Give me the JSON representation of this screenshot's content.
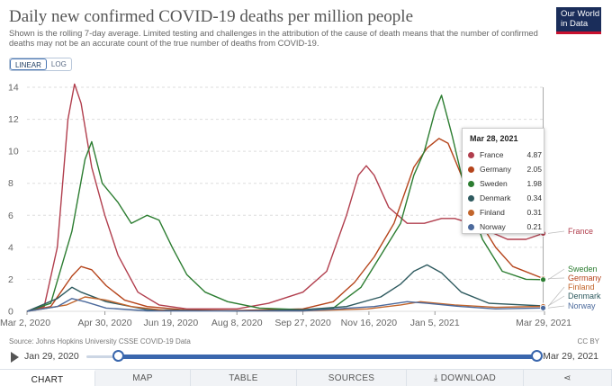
{
  "header": {
    "title": "Daily new confirmed COVID-19 deaths per million people",
    "subtitle": "Shown is the rolling 7-day average. Limited testing and challenges in the attribution of the cause of death means that the number of confirmed deaths may not be an accurate count of the true number of deaths from COVID-19.",
    "logo_line1": "Our World",
    "logo_line2": "in Data"
  },
  "scale_toggle": {
    "linear": "LINEAR",
    "log": "LOG",
    "active": "LINEAR"
  },
  "source": "Source: Johns Hopkins University CSSE COVID-19 Data",
  "license": "CC BY",
  "timeline": {
    "start_label": "Jan 29, 2020",
    "end_label": "Mar 29, 2021",
    "range_start": 0.07,
    "range_end": 1.0
  },
  "tabs": [
    {
      "label": "CHART",
      "active": true
    },
    {
      "label": "MAP",
      "active": false
    },
    {
      "label": "TABLE",
      "active": false
    },
    {
      "label": "SOURCES",
      "active": false
    },
    {
      "label": "⤓ DOWNLOAD",
      "active": false
    },
    {
      "label": "share-icon",
      "active": false
    }
  ],
  "tooltip": {
    "date": "Mar 28, 2021",
    "rows": [
      {
        "country": "France",
        "value": "4.87",
        "color": "#b13e4d"
      },
      {
        "country": "Germany",
        "value": "2.05",
        "color": "#b5441b"
      },
      {
        "country": "Sweden",
        "value": "1.98",
        "color": "#2c7d31"
      },
      {
        "country": "Denmark",
        "value": "0.34",
        "color": "#2e5a5f"
      },
      {
        "country": "Finland",
        "value": "0.31",
        "color": "#c2652c"
      },
      {
        "country": "Norway",
        "value": "0.21",
        "color": "#4c6a9c"
      }
    ]
  },
  "chart_data": {
    "type": "line",
    "title": "Daily new confirmed COVID-19 deaths per million people",
    "ylim": [
      0,
      14
    ],
    "yticks": [
      0,
      2,
      4,
      6,
      8,
      10,
      12,
      14
    ],
    "xlim": [
      "2020-03-02",
      "2021-03-29"
    ],
    "xticks": [
      "Mar 2, 2020",
      "Apr 30, 2020",
      "Jun 19, 2020",
      "Aug 8, 2020",
      "Sep 27, 2020",
      "Nov 16, 2020",
      "Jan 5, 2021",
      "Mar 29, 2021"
    ],
    "xtick_dates": [
      "2020-03-02",
      "2020-04-30",
      "2020-06-19",
      "2020-08-08",
      "2020-09-27",
      "2020-11-16",
      "2021-01-05",
      "2021-03-29"
    ],
    "grid": true,
    "series": [
      {
        "name": "France",
        "color": "#b13e4d",
        "points": [
          [
            "2020-03-02",
            0
          ],
          [
            "2020-03-15",
            0.3
          ],
          [
            "2020-03-25",
            4
          ],
          [
            "2020-04-02",
            12
          ],
          [
            "2020-04-07",
            14.2
          ],
          [
            "2020-04-12",
            13
          ],
          [
            "2020-04-20",
            9
          ],
          [
            "2020-04-30",
            6
          ],
          [
            "2020-05-10",
            3.5
          ],
          [
            "2020-05-25",
            1.2
          ],
          [
            "2020-06-10",
            0.4
          ],
          [
            "2020-07-01",
            0.15
          ],
          [
            "2020-08-08",
            0.15
          ],
          [
            "2020-09-01",
            0.5
          ],
          [
            "2020-09-27",
            1.2
          ],
          [
            "2020-10-15",
            2.5
          ],
          [
            "2020-10-30",
            6
          ],
          [
            "2020-11-08",
            8.5
          ],
          [
            "2020-11-14",
            9.1
          ],
          [
            "2020-11-20",
            8.5
          ],
          [
            "2020-12-01",
            6.5
          ],
          [
            "2020-12-15",
            5.5
          ],
          [
            "2020-12-28",
            5.5
          ],
          [
            "2021-01-10",
            5.8
          ],
          [
            "2021-01-20",
            5.8
          ],
          [
            "2021-02-01",
            5.5
          ],
          [
            "2021-02-15",
            5.0
          ],
          [
            "2021-03-01",
            4.5
          ],
          [
            "2021-03-15",
            4.5
          ],
          [
            "2021-03-28",
            4.87
          ]
        ]
      },
      {
        "name": "Germany",
        "color": "#b5441b",
        "points": [
          [
            "2020-03-02",
            0
          ],
          [
            "2020-03-20",
            0.3
          ],
          [
            "2020-04-05",
            2.2
          ],
          [
            "2020-04-12",
            2.8
          ],
          [
            "2020-04-20",
            2.6
          ],
          [
            "2020-05-01",
            1.6
          ],
          [
            "2020-05-15",
            0.7
          ],
          [
            "2020-06-01",
            0.3
          ],
          [
            "2020-07-01",
            0.08
          ],
          [
            "2020-08-08",
            0.05
          ],
          [
            "2020-09-27",
            0.15
          ],
          [
            "2020-10-20",
            0.6
          ],
          [
            "2020-11-05",
            1.8
          ],
          [
            "2020-11-20",
            3.4
          ],
          [
            "2020-12-05",
            5.5
          ],
          [
            "2020-12-20",
            9
          ],
          [
            "2020-12-30",
            10.2
          ],
          [
            "2021-01-08",
            10.8
          ],
          [
            "2021-01-15",
            10.5
          ],
          [
            "2021-01-25",
            8.5
          ],
          [
            "2021-02-05",
            6
          ],
          [
            "2021-02-20",
            4
          ],
          [
            "2021-03-05",
            2.8
          ],
          [
            "2021-03-28",
            2.05
          ]
        ]
      },
      {
        "name": "Sweden",
        "color": "#2c7d31",
        "points": [
          [
            "2020-03-02",
            0
          ],
          [
            "2020-03-20",
            0.5
          ],
          [
            "2020-04-05",
            5
          ],
          [
            "2020-04-15",
            9.5
          ],
          [
            "2020-04-20",
            10.6
          ],
          [
            "2020-04-28",
            8
          ],
          [
            "2020-05-10",
            6.8
          ],
          [
            "2020-05-20",
            5.5
          ],
          [
            "2020-06-01",
            6
          ],
          [
            "2020-06-10",
            5.7
          ],
          [
            "2020-06-20",
            4
          ],
          [
            "2020-07-01",
            2.3
          ],
          [
            "2020-07-15",
            1.2
          ],
          [
            "2020-08-01",
            0.6
          ],
          [
            "2020-08-25",
            0.2
          ],
          [
            "2020-09-27",
            0.1
          ],
          [
            "2020-10-20",
            0.2
          ],
          [
            "2020-11-10",
            1.5
          ],
          [
            "2020-11-25",
            3.5
          ],
          [
            "2020-12-10",
            5.5
          ],
          [
            "2020-12-20",
            8.5
          ],
          [
            "2020-12-28",
            10
          ],
          [
            "2021-01-05",
            12.5
          ],
          [
            "2021-01-10",
            13.5
          ],
          [
            "2021-01-18",
            11
          ],
          [
            "2021-01-28",
            7.5
          ],
          [
            "2021-02-10",
            4.5
          ],
          [
            "2021-02-25",
            2.5
          ],
          [
            "2021-03-15",
            2
          ],
          [
            "2021-03-28",
            1.98
          ]
        ]
      },
      {
        "name": "Denmark",
        "color": "#2e5a5f",
        "points": [
          [
            "2020-03-02",
            0
          ],
          [
            "2020-03-25",
            0.8
          ],
          [
            "2020-04-05",
            1.5
          ],
          [
            "2020-04-12",
            1.2
          ],
          [
            "2020-05-01",
            0.6
          ],
          [
            "2020-06-01",
            0.1
          ],
          [
            "2020-08-08",
            0.02
          ],
          [
            "2020-09-27",
            0.1
          ],
          [
            "2020-10-30",
            0.3
          ],
          [
            "2020-11-25",
            0.9
          ],
          [
            "2020-12-10",
            1.7
          ],
          [
            "2020-12-20",
            2.5
          ],
          [
            "2020-12-30",
            2.9
          ],
          [
            "2021-01-10",
            2.4
          ],
          [
            "2021-01-25",
            1.2
          ],
          [
            "2021-02-15",
            0.5
          ],
          [
            "2021-03-28",
            0.34
          ]
        ]
      },
      {
        "name": "Finland",
        "color": "#c2652c",
        "points": [
          [
            "2020-03-02",
            0
          ],
          [
            "2020-04-01",
            0.4
          ],
          [
            "2020-04-15",
            0.9
          ],
          [
            "2020-05-01",
            0.7
          ],
          [
            "2020-05-20",
            0.3
          ],
          [
            "2020-06-15",
            0.05
          ],
          [
            "2020-09-27",
            0.02
          ],
          [
            "2020-11-15",
            0.15
          ],
          [
            "2020-12-10",
            0.4
          ],
          [
            "2020-12-25",
            0.6
          ],
          [
            "2021-01-20",
            0.4
          ],
          [
            "2021-02-20",
            0.25
          ],
          [
            "2021-03-28",
            0.31
          ]
        ]
      },
      {
        "name": "Norway",
        "color": "#4c6a9c",
        "points": [
          [
            "2020-03-02",
            0
          ],
          [
            "2020-03-25",
            0.3
          ],
          [
            "2020-04-05",
            0.8
          ],
          [
            "2020-04-15",
            0.6
          ],
          [
            "2020-05-01",
            0.2
          ],
          [
            "2020-06-01",
            0.03
          ],
          [
            "2020-09-27",
            0.02
          ],
          [
            "2020-11-20",
            0.3
          ],
          [
            "2020-12-15",
            0.6
          ],
          [
            "2020-12-30",
            0.5
          ],
          [
            "2021-01-25",
            0.3
          ],
          [
            "2021-02-20",
            0.15
          ],
          [
            "2021-03-28",
            0.21
          ]
        ]
      }
    ],
    "end_labels": [
      {
        "text": "France",
        "value": 4.87
      },
      {
        "text": "Sweden",
        "value": 1.98
      },
      {
        "text": "Germany",
        "value": 2.05
      },
      {
        "text": "Finland",
        "value": 0.31
      },
      {
        "text": "Denmark",
        "value": 0.34
      },
      {
        "text": "Norway",
        "value": 0.21
      }
    ],
    "hover_date": "2021-03-28"
  }
}
